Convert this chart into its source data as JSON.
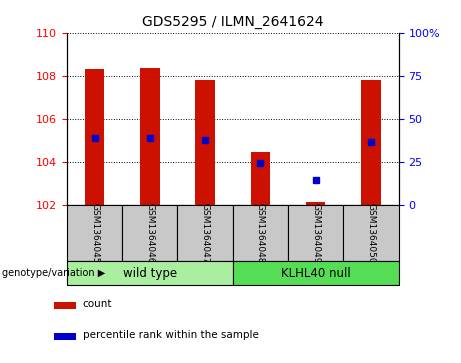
{
  "title": "GDS5295 / ILMN_2641624",
  "samples": [
    "GSM1364045",
    "GSM1364046",
    "GSM1364047",
    "GSM1364048",
    "GSM1364049",
    "GSM1364050"
  ],
  "bar_bottoms": [
    102,
    102,
    102,
    102,
    102,
    102
  ],
  "bar_tops": [
    108.3,
    108.35,
    107.8,
    104.45,
    102.15,
    107.8
  ],
  "blue_y_left": [
    105.1,
    105.1,
    105.0,
    103.95,
    103.15,
    104.95
  ],
  "ylim_left": [
    102,
    110
  ],
  "ylim_right": [
    0,
    100
  ],
  "yticks_left": [
    102,
    104,
    106,
    108,
    110
  ],
  "yticks_right": [
    0,
    25,
    50,
    75,
    100
  ],
  "ytick_labels_right": [
    "0",
    "25",
    "50",
    "75",
    "100%"
  ],
  "bar_color": "#cc1100",
  "blue_color": "#0000cc",
  "groups": [
    {
      "label": "wild type",
      "indices": [
        0,
        1,
        2
      ],
      "color": "#aaeea0"
    },
    {
      "label": "KLHL40 null",
      "indices": [
        3,
        4,
        5
      ],
      "color": "#55dd55"
    }
  ],
  "group_label_prefix": "genotype/variation",
  "legend_items": [
    {
      "color": "#cc1100",
      "label": "count"
    },
    {
      "color": "#0000cc",
      "label": "percentile rank within the sample"
    }
  ],
  "sample_box_color": "#c8c8c8",
  "bar_width": 0.35
}
